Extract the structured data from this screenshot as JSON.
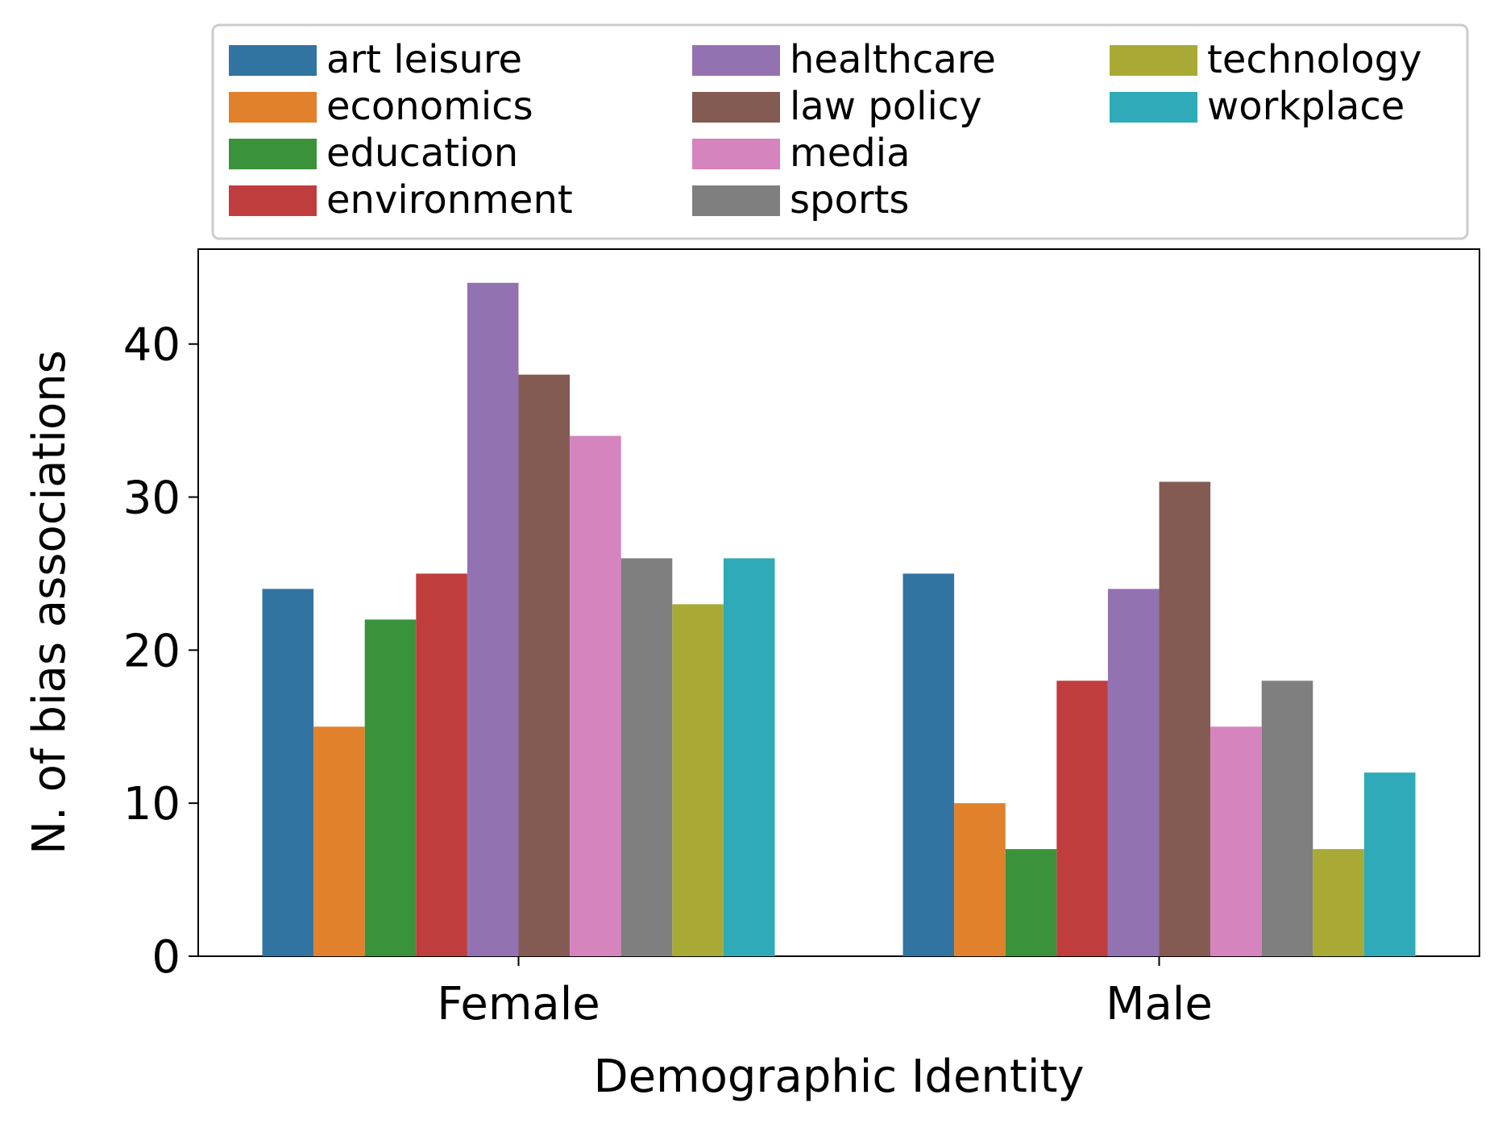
{
  "chart_data": {
    "type": "bar",
    "title": "",
    "xlabel": "Demographic Identity",
    "ylabel": "N. of bias associations",
    "ylim": [
      0,
      46.2
    ],
    "yticks": [
      0,
      10,
      20,
      30,
      40
    ],
    "grid": false,
    "legend_position": "top",
    "categories": [
      "Female",
      "Male"
    ],
    "series": [
      {
        "name": "art leisure",
        "color": "#3274a1",
        "values": [
          24,
          25
        ]
      },
      {
        "name": "economics",
        "color": "#e1812c",
        "values": [
          15,
          10
        ]
      },
      {
        "name": "education",
        "color": "#3a923a",
        "values": [
          22,
          7
        ]
      },
      {
        "name": "environment",
        "color": "#c03d3e",
        "values": [
          25,
          18
        ]
      },
      {
        "name": "healthcare",
        "color": "#9372b2",
        "values": [
          44,
          24
        ]
      },
      {
        "name": "law policy",
        "color": "#845b53",
        "values": [
          38,
          31
        ]
      },
      {
        "name": "media",
        "color": "#d684bd",
        "values": [
          34,
          15
        ]
      },
      {
        "name": "sports",
        "color": "#7f7f7f",
        "values": [
          26,
          18
        ]
      },
      {
        "name": "technology",
        "color": "#a9aa35",
        "values": [
          23,
          7
        ]
      },
      {
        "name": "workplace",
        "color": "#2eaab8",
        "values": [
          26,
          12
        ]
      }
    ]
  }
}
